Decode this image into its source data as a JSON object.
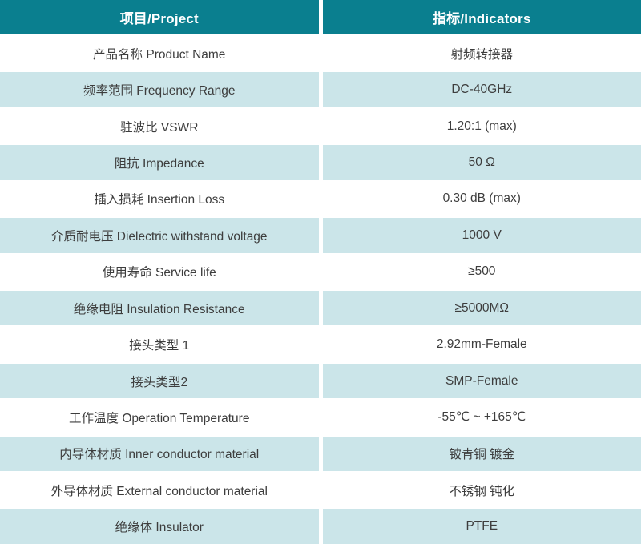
{
  "colors": {
    "header_bg": "#0a7f8f",
    "header_text": "#ffffff",
    "stripe_bg": "#cbe5e9",
    "body_text": "#3d3d3d"
  },
  "table": {
    "columns": [
      "项目/Project",
      "指标/Indicators"
    ],
    "rows": [
      {
        "project": "产品名称 Product Name",
        "indicator": "射频转接器"
      },
      {
        "project": "频率范围 Frequency Range",
        "indicator": "DC-40GHz"
      },
      {
        "project": "驻波比 VSWR",
        "indicator": "1.20:1 (max)"
      },
      {
        "project": "阻抗 Impedance",
        "indicator": "50 Ω"
      },
      {
        "project": "插入损耗 Insertion Loss",
        "indicator": "0.30 dB (max)"
      },
      {
        "project": "介质耐电压 Dielectric withstand voltage",
        "indicator": "1000 V"
      },
      {
        "project": "使用寿命 Service life",
        "indicator": "≥500"
      },
      {
        "project": "绝缘电阻 Insulation Resistance",
        "indicator": "≥5000MΩ"
      },
      {
        "project": "接头类型 1",
        "indicator": "2.92mm-Female"
      },
      {
        "project": "接头类型2",
        "indicator": "SMP-Female"
      },
      {
        "project": "工作温度 Operation Temperature",
        "indicator": "-55℃ ~ +165℃"
      },
      {
        "project": "内导体材质 Inner conductor material",
        "indicator": "铍青铜 镀金"
      },
      {
        "project": "外导体材质 External conductor material",
        "indicator": "不锈钢 钝化"
      },
      {
        "project": "绝缘体 Insulator",
        "indicator": "PTFE"
      }
    ]
  }
}
